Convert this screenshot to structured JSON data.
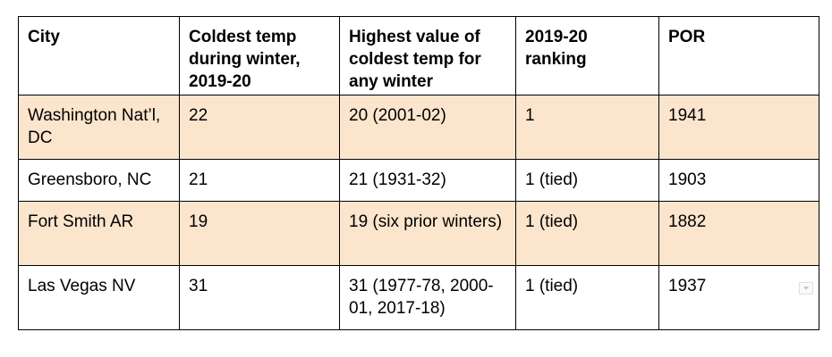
{
  "table": {
    "headers": [
      "City",
      "Coldest temp during winter, 2019-20",
      "Highest value of coldest temp for any winter",
      "2019-20 ranking",
      "POR"
    ],
    "rows": [
      [
        "Washington Nat’l, DC",
        "22",
        "20 (2001-02)",
        "1",
        "1941"
      ],
      [
        "Greensboro, NC",
        "21",
        "21 (1931-32)",
        "1 (tied)",
        "1903"
      ],
      [
        "Fort Smith AR",
        "19",
        "19 (six prior winters)",
        "1 (tied)",
        "1882"
      ],
      [
        "Las Vegas NV",
        "31",
        "31 (1977-78, 2000-01, 2017-18)",
        "1 (tied)",
        "1937"
      ]
    ],
    "row_shading": [
      "#fce5cd",
      "#ffffff",
      "#fce5cd",
      "#ffffff"
    ]
  },
  "icons": {
    "cell_corner_marker": "dropdown-arrow-icon"
  }
}
